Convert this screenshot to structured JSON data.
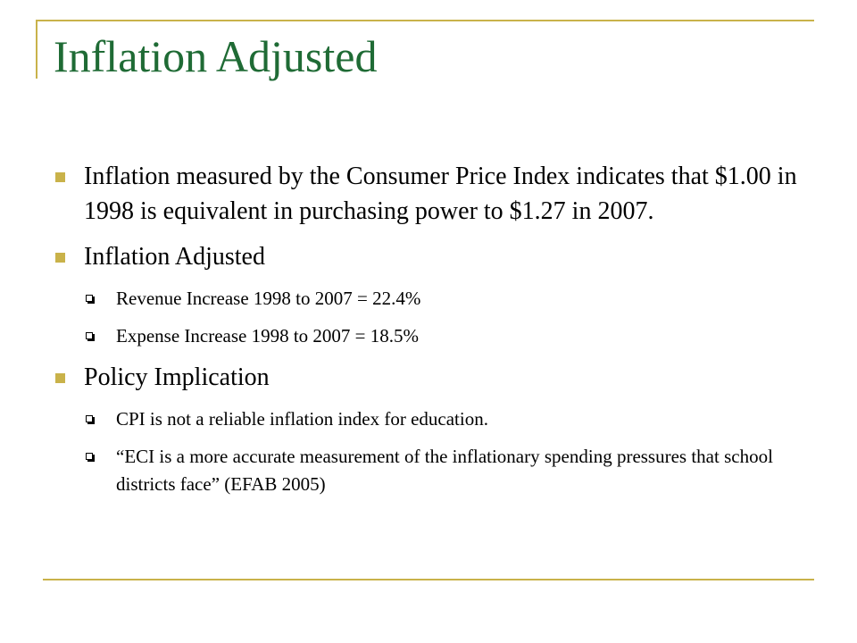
{
  "slide": {
    "title": "Inflation Adjusted",
    "bullets": [
      {
        "text": "Inflation measured by the Consumer Price Index indicates that $1.00 in 1998 is equivalent in purchasing power to $1.27 in 2007."
      },
      {
        "text": "Inflation Adjusted",
        "subitems": [
          "Revenue Increase 1998 to 2007 = 22.4%",
          "Expense Increase 1998 to 2007 = 18.5%"
        ]
      },
      {
        "text": "Policy Implication",
        "subitems": [
          "CPI is not a reliable inflation index for education.",
          "“ECI is a more accurate measurement of the inflationary spending pressures that school districts face” (EFAB 2005)"
        ]
      }
    ]
  },
  "colors": {
    "title": "#1f6b35",
    "accent": "#c9b24a",
    "text": "#000000",
    "background": "#ffffff"
  },
  "icons": {
    "bullet": "filled-square-bullet-icon",
    "sub_bullet": "hollow-square-bullet-icon"
  }
}
